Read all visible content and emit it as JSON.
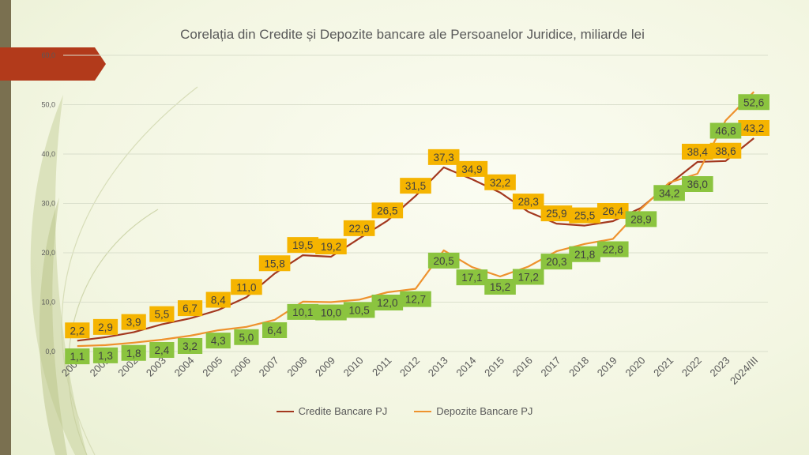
{
  "colors": {
    "credit_line": "#a3381f",
    "deposit_line": "#ee922e",
    "credit_label_bg": "#f5b400",
    "deposit_label_bg": "#8bc43f",
    "label_text": "#404040",
    "axis_text": "#595959",
    "grid": "#dadfcc",
    "accent_tab": "#b23a1b"
  },
  "chart_data": {
    "type": "line",
    "title": "Corelația din Credite și Depozite bancare ale Persoanelor Juridice, miliarde lei",
    "categories": [
      "2000",
      "2001",
      "2002",
      "2003",
      "2004",
      "2005",
      "2006",
      "2007",
      "2008",
      "2009",
      "2010",
      "2011",
      "2012",
      "2013",
      "2014",
      "2015",
      "2016",
      "2017",
      "2018",
      "2019",
      "2020",
      "2021",
      "2022",
      "2023",
      "2024/III"
    ],
    "ylim": [
      0,
      60
    ],
    "yticks": [
      "0,0",
      "10,0",
      "20,0",
      "30,0",
      "40,0",
      "50,0",
      "60,0"
    ],
    "grid": true,
    "legend_position": "bottom",
    "series": [
      {
        "name": "Credite Bancare PJ",
        "values": [
          2.2,
          2.9,
          3.9,
          5.5,
          6.7,
          8.4,
          11.0,
          15.8,
          19.5,
          19.2,
          22.9,
          26.5,
          31.5,
          37.3,
          34.9,
          32.2,
          28.3,
          25.9,
          25.5,
          26.4,
          29.1,
          33.9,
          38.4,
          38.6,
          43.2
        ],
        "labels": [
          "2,2",
          "2,9",
          "3,9",
          "5,5",
          "6,7",
          "8,4",
          "11,0",
          "15,8",
          "19,5",
          "19,2",
          "22,9",
          "26,5",
          "31,5",
          "37,3",
          "34,9",
          "32,2",
          "28,3",
          "25,9",
          "25,5",
          "26,4",
          "",
          "",
          "38,4",
          "38,6",
          "43,2"
        ]
      },
      {
        "name": "Depozite Bancare PJ",
        "values": [
          1.1,
          1.3,
          1.8,
          2.4,
          3.2,
          4.3,
          5.0,
          6.4,
          10.1,
          10.0,
          10.5,
          12.0,
          12.7,
          20.5,
          17.1,
          15.2,
          17.2,
          20.3,
          21.8,
          22.8,
          28.9,
          34.2,
          36.0,
          46.8,
          52.6
        ],
        "labels": [
          "1,1",
          "1,3",
          "1,8",
          "2,4",
          "3,2",
          "4,3",
          "5,0",
          "6,4",
          "10,1",
          "10,0",
          "10,5",
          "12,0",
          "12,7",
          "20,5",
          "17,1",
          "15,2",
          "17,2",
          "20,3",
          "21,8",
          "22,8",
          "28,9",
          "34,2",
          "36,0",
          "46,8",
          "52,6"
        ]
      }
    ]
  }
}
